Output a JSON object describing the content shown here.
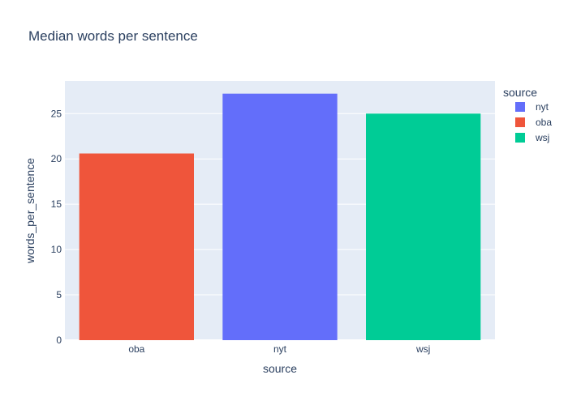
{
  "chart_data": {
    "type": "bar",
    "title": "Median words per sentence",
    "xlabel": "source",
    "ylabel": "words_per_sentence",
    "categories": [
      "oba",
      "nyt",
      "wsj"
    ],
    "series": [
      {
        "name": "nyt",
        "category": "nyt",
        "value": 27.2,
        "color": "#636efa"
      },
      {
        "name": "oba",
        "category": "oba",
        "value": 20.6,
        "color": "#ef553b"
      },
      {
        "name": "wsj",
        "category": "wsj",
        "value": 25.0,
        "color": "#00cc96"
      }
    ],
    "ylim": [
      0,
      28.6
    ],
    "yticks": [
      0,
      5,
      10,
      15,
      20,
      25
    ],
    "grid": true,
    "legend": {
      "title": "source",
      "position": "top-right",
      "items": [
        "nyt",
        "oba",
        "wsj"
      ]
    },
    "colors": {
      "plot_background": "#e5ecf6",
      "grid": "#ffffff",
      "text": "#2a3f5f"
    }
  }
}
